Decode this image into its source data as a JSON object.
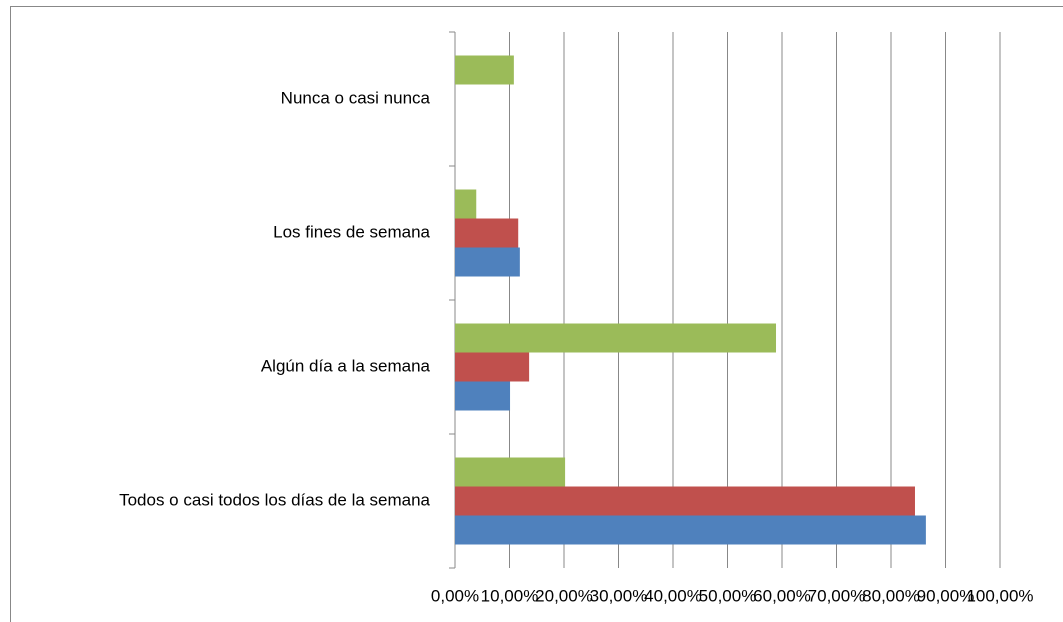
{
  "chart_data": {
    "type": "barh",
    "categories": [
      "Todos o casi todos los días de la semana",
      "Algún día a la semana",
      "Los fines de semana",
      "Nunca o casi nunca"
    ],
    "series": [
      {
        "color": "#4f81bd",
        "values": [
          86.4,
          10.1,
          11.9,
          0
        ]
      },
      {
        "color": "#c0504d",
        "values": [
          84.4,
          13.6,
          11.6,
          0
        ]
      },
      {
        "color": "#9bbb59",
        "values": [
          20.2,
          58.9,
          3.9,
          10.8
        ]
      }
    ],
    "xlim": [
      0,
      100
    ],
    "xticks": [
      {
        "value": 0,
        "label": "0,00%"
      },
      {
        "value": 10,
        "label": "10,00%"
      },
      {
        "value": 20,
        "label": "20,00%"
      },
      {
        "value": 30,
        "label": "30,00%"
      },
      {
        "value": 40,
        "label": "40,00%"
      },
      {
        "value": 50,
        "label": "50,00%"
      },
      {
        "value": 60,
        "label": "60,00%"
      },
      {
        "value": 70,
        "label": "70,00%"
      },
      {
        "value": 80,
        "label": "80,00%"
      },
      {
        "value": 90,
        "label": "90,00%"
      },
      {
        "value": 100,
        "label": "100,00%"
      }
    ],
    "grid": true
  }
}
